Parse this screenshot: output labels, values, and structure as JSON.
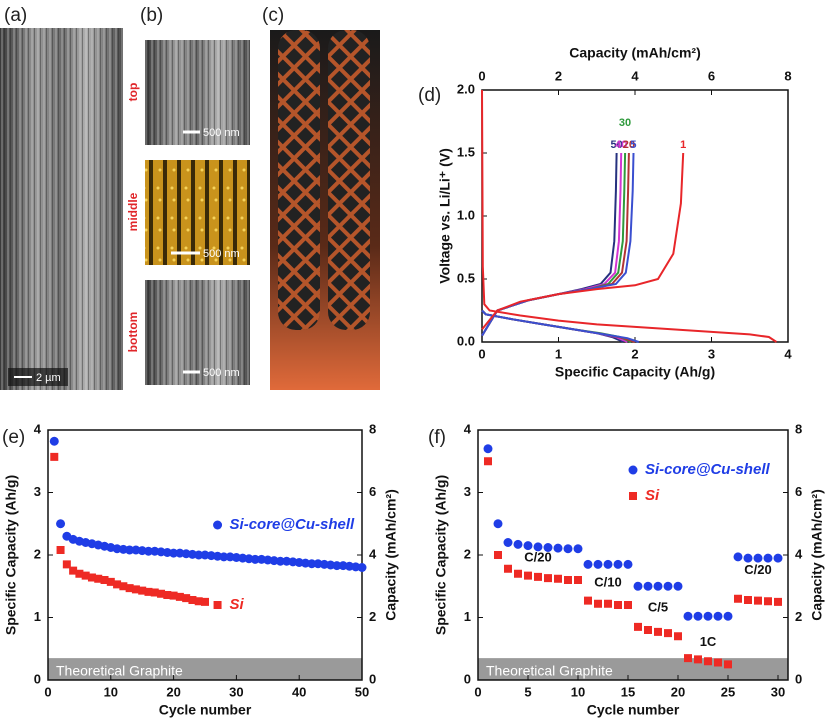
{
  "panels": {
    "a": {
      "label": "(a)",
      "scale_bar": "2 µm"
    },
    "b": {
      "label": "(b)",
      "images": [
        {
          "position": "top",
          "scale_bar": "500 nm"
        },
        {
          "position": "middle",
          "scale_bar": "500 nm"
        },
        {
          "position": "bottom",
          "scale_bar": "500 nm"
        }
      ]
    },
    "c": {
      "label": "(c)"
    }
  },
  "chart_data": [
    {
      "type": "line",
      "panel_label": "(d)",
      "x_label": "Specific Capacity (Ah/g)",
      "x2_label": "Capacity (mAh/cm²)",
      "y_label": "Voltage vs. Li/Li⁺ (V)",
      "xlim": [
        0,
        4
      ],
      "xticks": [
        0,
        1,
        2,
        3,
        4
      ],
      "x2lim": [
        0,
        8
      ],
      "x2ticks": [
        0,
        2,
        4,
        6,
        8
      ],
      "ylim": [
        0,
        2.0
      ],
      "yticks": [
        {
          "value": 0,
          "label": "0.0"
        },
        0.5,
        {
          "value": 1,
          "label": "1.0"
        },
        1.5,
        {
          "value": 2,
          "label": "2.0"
        }
      ],
      "series": [
        {
          "name": "50",
          "color": "#26317f",
          "x": [
            0,
            0.05,
            0.4,
            0.8,
            1.2,
            1.5,
            1.7,
            1.85,
            null,
            0,
            0.2,
            0.6,
            1.0,
            1.3,
            1.55,
            1.68,
            1.73,
            1.75,
            1.76
          ],
          "values": [
            0.25,
            0.22,
            0.18,
            0.14,
            0.1,
            0.07,
            0.04,
            0.0,
            null,
            0.05,
            0.25,
            0.33,
            0.38,
            0.42,
            0.46,
            0.55,
            0.8,
            1.2,
            1.5
          ]
        },
        {
          "name": "40",
          "color": "#d334d3",
          "x": [
            0,
            0.05,
            0.4,
            0.8,
            1.2,
            1.5,
            1.75,
            1.9,
            null,
            0,
            0.2,
            0.6,
            1.0,
            1.35,
            1.6,
            1.74,
            1.79,
            1.81,
            1.82
          ],
          "values": [
            0.25,
            0.22,
            0.18,
            0.14,
            0.1,
            0.07,
            0.04,
            0.0,
            null,
            0.05,
            0.25,
            0.33,
            0.38,
            0.42,
            0.46,
            0.55,
            0.8,
            1.2,
            1.5
          ]
        },
        {
          "name": "30",
          "color": "#2e9a3c",
          "x": [
            0,
            0.05,
            0.4,
            0.8,
            1.2,
            1.55,
            1.8,
            1.95,
            null,
            0,
            0.2,
            0.6,
            1.0,
            1.4,
            1.65,
            1.78,
            1.84,
            1.86,
            1.87
          ],
          "values": [
            0.25,
            0.22,
            0.18,
            0.14,
            0.1,
            0.07,
            0.04,
            0.0,
            null,
            0.05,
            0.25,
            0.33,
            0.38,
            0.42,
            0.46,
            0.55,
            0.8,
            1.2,
            1.5
          ]
        },
        {
          "name": "20",
          "color": "#b23434",
          "x": [
            0,
            0.05,
            0.4,
            0.8,
            1.2,
            1.6,
            1.85,
            2.0,
            null,
            0,
            0.2,
            0.6,
            1.0,
            1.4,
            1.7,
            1.83,
            1.89,
            1.91,
            1.92
          ],
          "values": [
            0.25,
            0.22,
            0.18,
            0.14,
            0.1,
            0.06,
            0.03,
            0.0,
            null,
            0.05,
            0.25,
            0.33,
            0.38,
            0.42,
            0.46,
            0.55,
            0.8,
            1.2,
            1.5
          ]
        },
        {
          "name": "5",
          "color": "#3a4fd0",
          "x": [
            0,
            0.05,
            0.4,
            0.8,
            1.2,
            1.6,
            1.9,
            2.05,
            null,
            0,
            0.2,
            0.6,
            1.0,
            1.4,
            1.75,
            1.88,
            1.94,
            1.97,
            1.98
          ],
          "values": [
            0.25,
            0.22,
            0.18,
            0.14,
            0.1,
            0.06,
            0.03,
            0.0,
            null,
            0.05,
            0.25,
            0.33,
            0.38,
            0.42,
            0.46,
            0.55,
            0.8,
            1.2,
            1.5
          ]
        },
        {
          "name": "1",
          "color": "#e8262a",
          "x": [
            0,
            0.01,
            0.03,
            0.1,
            0.5,
            1.0,
            1.5,
            2.0,
            2.5,
            3.0,
            3.5,
            3.75,
            3.85,
            null,
            0,
            0.2,
            0.5,
            1.0,
            1.5,
            2.0,
            2.3,
            2.5,
            2.6,
            2.63
          ],
          "values": [
            2.0,
            0.6,
            0.3,
            0.25,
            0.21,
            0.17,
            0.14,
            0.12,
            0.1,
            0.08,
            0.06,
            0.04,
            0.0,
            null,
            0.1,
            0.25,
            0.32,
            0.38,
            0.42,
            0.45,
            0.5,
            0.7,
            1.1,
            1.5
          ]
        }
      ]
    },
    {
      "type": "scatter",
      "panel_label": "(e)",
      "x_label": "Cycle number",
      "y_label": "Specific Capacity (Ah/g)",
      "y2_label": "Capacity (mAh/cm²)",
      "xlim": [
        0,
        50
      ],
      "xticks": [
        0,
        10,
        20,
        30,
        40,
        50
      ],
      "ylim": [
        0,
        4
      ],
      "yticks": [
        0,
        1,
        2,
        3,
        4
      ],
      "y2lim": [
        0,
        8
      ],
      "y2ticks": [
        0,
        2,
        4,
        6,
        8
      ],
      "legend": "right",
      "reference_band": {
        "label": "Theoretical Graphite",
        "value": 0.35
      },
      "series": [
        {
          "name": "Si-core@Cu-shell",
          "color": "#1f3de6",
          "marker": "circle",
          "x": [
            1,
            2,
            3,
            4,
            5,
            6,
            7,
            8,
            9,
            10,
            11,
            12,
            13,
            14,
            15,
            16,
            17,
            18,
            19,
            20,
            21,
            22,
            23,
            24,
            25,
            26,
            27,
            28,
            29,
            30,
            31,
            32,
            33,
            34,
            35,
            36,
            37,
            38,
            39,
            40,
            41,
            42,
            43,
            44,
            45,
            46,
            47,
            48,
            49,
            50
          ],
          "values": [
            3.82,
            2.5,
            2.3,
            2.25,
            2.22,
            2.2,
            2.18,
            2.16,
            2.14,
            2.12,
            2.1,
            2.09,
            2.08,
            2.08,
            2.07,
            2.06,
            2.06,
            2.05,
            2.04,
            2.03,
            2.03,
            2.02,
            2.01,
            2.0,
            2.0,
            1.99,
            1.98,
            1.97,
            1.97,
            1.96,
            1.95,
            1.94,
            1.93,
            1.93,
            1.92,
            1.91,
            1.9,
            1.9,
            1.89,
            1.88,
            1.87,
            1.86,
            1.86,
            1.85,
            1.84,
            1.83,
            1.83,
            1.82,
            1.81,
            1.8
          ]
        },
        {
          "name": "Si",
          "color": "#ee2a24",
          "marker": "square",
          "x": [
            1,
            2,
            3,
            4,
            5,
            6,
            7,
            8,
            9,
            10,
            11,
            12,
            13,
            14,
            15,
            16,
            17,
            18,
            19,
            20,
            21,
            22,
            23,
            24,
            25
          ],
          "values": [
            3.57,
            2.08,
            1.85,
            1.75,
            1.7,
            1.67,
            1.64,
            1.62,
            1.6,
            1.57,
            1.53,
            1.5,
            1.47,
            1.45,
            1.43,
            1.41,
            1.4,
            1.38,
            1.36,
            1.35,
            1.33,
            1.31,
            1.28,
            1.26,
            1.25
          ]
        }
      ]
    },
    {
      "type": "scatter",
      "panel_label": "(f)",
      "x_label": "Cycle number",
      "y_label": "Specific Capacity (Ah/g)",
      "y2_label": "Capacity (mAh/cm²)",
      "xlim": [
        0,
        31
      ],
      "xticks": [
        0,
        5,
        10,
        15,
        20,
        25,
        30
      ],
      "ylim": [
        0,
        4
      ],
      "yticks": [
        0,
        1,
        2,
        3,
        4
      ],
      "y2lim": [
        0,
        8
      ],
      "y2ticks": [
        0,
        2,
        4,
        6,
        8
      ],
      "legend": "top-right",
      "reference_band": {
        "label": "Theoretical Graphite",
        "value": 0.35
      },
      "annotations": [
        "C/20",
        "C/10",
        "C/5",
        "1C",
        "C/20"
      ],
      "series": [
        {
          "name": "Si-core@Cu-shell",
          "color": "#1f3de6",
          "marker": "circle",
          "x": [
            1,
            2,
            3,
            4,
            5,
            6,
            7,
            8,
            9,
            10,
            11,
            12,
            13,
            14,
            15,
            16,
            17,
            18,
            19,
            20,
            21,
            22,
            23,
            24,
            25,
            26,
            27,
            28,
            29,
            30
          ],
          "values": [
            3.7,
            2.5,
            2.2,
            2.17,
            2.15,
            2.13,
            2.12,
            2.11,
            2.1,
            2.1,
            1.85,
            1.85,
            1.85,
            1.85,
            1.85,
            1.5,
            1.5,
            1.5,
            1.5,
            1.5,
            1.02,
            1.02,
            1.02,
            1.02,
            1.02,
            1.97,
            1.95,
            1.95,
            1.95,
            1.95
          ]
        },
        {
          "name": "Si",
          "color": "#ee2a24",
          "marker": "square",
          "x": [
            1,
            2,
            3,
            4,
            5,
            6,
            7,
            8,
            9,
            10,
            11,
            12,
            13,
            14,
            15,
            16,
            17,
            18,
            19,
            20,
            21,
            22,
            23,
            24,
            25,
            26,
            27,
            28,
            29,
            30
          ],
          "values": [
            3.5,
            2.0,
            1.78,
            1.7,
            1.67,
            1.65,
            1.63,
            1.62,
            1.6,
            1.6,
            1.27,
            1.22,
            1.22,
            1.2,
            1.2,
            0.85,
            0.8,
            0.77,
            0.75,
            0.7,
            0.35,
            0.33,
            0.3,
            0.28,
            0.25,
            1.3,
            1.28,
            1.27,
            1.26,
            1.25
          ]
        }
      ]
    }
  ]
}
